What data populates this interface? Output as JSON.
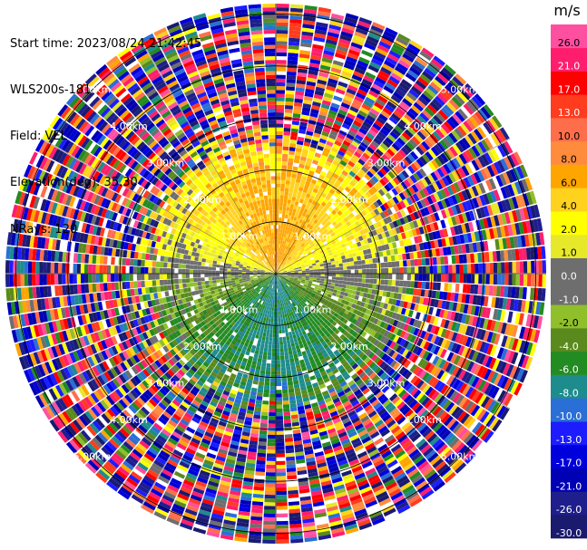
{
  "header": {
    "start_time": "Start time: 2023/08/24 21:42:45",
    "instrument": "WLS200s-181",
    "field": "Field: VEL",
    "elevation": "Elevation(deg): 35.30",
    "nrays": "NRays: 120"
  },
  "chart_data": {
    "type": "heatmap",
    "subtype": "polar-ppi",
    "field": "VEL",
    "units": "m/s",
    "n_rays": 120,
    "elevation_deg": 35.3,
    "range_rings_km": [
      1.0,
      2.0,
      3.0,
      4.0,
      5.0
    ],
    "ring_labels": [
      "1.00km",
      "2.00km",
      "3.00km",
      "4.00km",
      "5.00km"
    ],
    "max_range_km": 5.2,
    "colorbar": {
      "label": "m/s",
      "boundaries": [
        -30.0,
        -26.0,
        -21.0,
        -17.0,
        -13.0,
        -10.0,
        -8.0,
        -6.0,
        -4.0,
        -2.0,
        -1.0,
        0.0,
        1.0,
        2.0,
        4.0,
        6.0,
        8.0,
        10.0,
        13.0,
        17.0,
        21.0,
        26.0
      ],
      "tick_labels": [
        "-30.0",
        "-26.0",
        "-21.0",
        "-17.0",
        "-13.0",
        "-10.0",
        "-8.0",
        "-6.0",
        "-4.0",
        "-2.0",
        "-1.0",
        "0.0",
        "1.0",
        "2.0",
        "4.0",
        "6.0",
        "8.0",
        "10.0",
        "13.0",
        "17.0",
        "21.0",
        "26.0"
      ],
      "colors": [
        "#1a1a6e",
        "#1e1e8c",
        "#0000b4",
        "#0000dc",
        "#1c1cff",
        "#2a6fd6",
        "#1e8c8c",
        "#228b22",
        "#5a8a1e",
        "#8fbf2a",
        "#6e6e6e",
        "#6e6e6e",
        "#e8e82a",
        "#ffff00",
        "#ffd21e",
        "#ffa500",
        "#ff8c3c",
        "#ff6e4a",
        "#ff3c1e",
        "#ff0000",
        "#ff1e6e",
        "#ff4fa0"
      ]
    },
    "pattern": {
      "near_field_range_km": 2.3,
      "north_half": "positive velocities ~2 to 10 m/s (yellow to salmon)",
      "south_half": "negative velocities ~-1 to -8 m/s (greens to teal)",
      "zero_line": "east-west band near 0 m/s (grey)",
      "far_field": "noise, full colour range"
    },
    "grid": true
  }
}
